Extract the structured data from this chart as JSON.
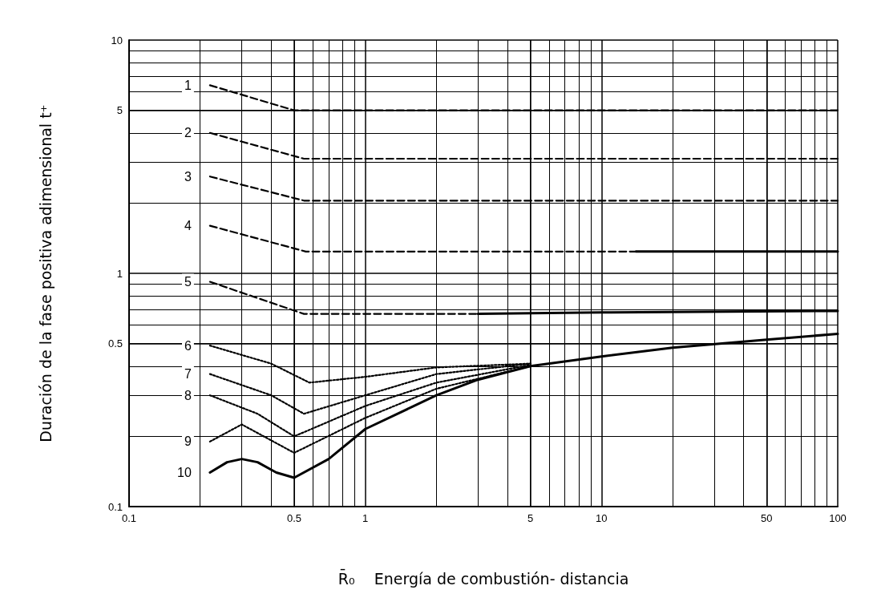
{
  "chart_data": {
    "type": "line",
    "xlabel": "R̄₀    Energía de combustión- distancia",
    "ylabel": "Duración de la fase positiva adimensional t⁺",
    "log": "xy",
    "xlim": [
      0.1,
      100
    ],
    "ylim": [
      0.1,
      10
    ],
    "xticks": [
      0.1,
      0.5,
      1,
      5,
      10,
      50,
      100
    ],
    "yticks": [
      0.1,
      0.5,
      1,
      5,
      10
    ],
    "grid": true,
    "legend": false,
    "series": [
      {
        "name": "1",
        "color": "#000000",
        "line_style": "dashed",
        "x": [
          0.22,
          0.5,
          100
        ],
        "values": [
          6.4,
          5.0,
          5.0
        ]
      },
      {
        "name": "2",
        "color": "#000000",
        "line_style": "dashed",
        "x": [
          0.22,
          0.55,
          100
        ],
        "values": [
          4.0,
          3.1,
          3.1
        ]
      },
      {
        "name": "3",
        "color": "#000000",
        "line_style": "dashed",
        "x": [
          0.22,
          0.55,
          100
        ],
        "values": [
          2.6,
          2.05,
          2.05
        ]
      },
      {
        "name": "4",
        "color": "#000000",
        "line_style": "dashed",
        "x": [
          0.22,
          0.56,
          14
        ],
        "values": [
          1.6,
          1.24,
          1.24
        ]
      },
      {
        "color": "#000000",
        "line_style": "solid",
        "x": [
          14,
          100
        ],
        "values": [
          1.24,
          1.24
        ]
      },
      {
        "name": "5",
        "color": "#000000",
        "line_style": "dashed",
        "x": [
          0.22,
          0.55,
          3
        ],
        "values": [
          0.92,
          0.67,
          0.67
        ]
      },
      {
        "color": "#000000",
        "line_style": "solid",
        "x": [
          3,
          10,
          100
        ],
        "values": [
          0.67,
          0.68,
          0.69
        ]
      },
      {
        "name": "6",
        "color": "#000000",
        "line_style": "dotted",
        "x": [
          0.22,
          0.4,
          0.58,
          1,
          2,
          5
        ],
        "values": [
          0.49,
          0.41,
          0.34,
          0.36,
          0.395,
          0.41
        ]
      },
      {
        "name": "7",
        "color": "#000000",
        "line_style": "dotted",
        "x": [
          0.22,
          0.4,
          0.55,
          1,
          2,
          5
        ],
        "values": [
          0.37,
          0.3,
          0.25,
          0.3,
          0.37,
          0.41
        ]
      },
      {
        "name": "8",
        "color": "#000000",
        "line_style": "dotted",
        "x": [
          0.22,
          0.35,
          0.5,
          1,
          2,
          5
        ],
        "values": [
          0.3,
          0.25,
          0.2,
          0.27,
          0.34,
          0.405
        ]
      },
      {
        "name": "9",
        "color": "#000000",
        "line_style": "dotted",
        "x": [
          0.22,
          0.3,
          0.5,
          1,
          2,
          5
        ],
        "values": [
          0.19,
          0.225,
          0.17,
          0.24,
          0.32,
          0.4
        ]
      },
      {
        "name": "10",
        "color": "#000000",
        "line_style": "solid",
        "x": [
          0.22,
          0.26,
          0.3,
          0.35,
          0.42,
          0.5,
          0.7,
          1,
          2,
          3,
          5,
          10,
          20,
          50,
          100
        ],
        "values": [
          0.14,
          0.155,
          0.16,
          0.155,
          0.14,
          0.133,
          0.16,
          0.215,
          0.3,
          0.35,
          0.4,
          0.44,
          0.48,
          0.52,
          0.55
        ]
      }
    ]
  }
}
